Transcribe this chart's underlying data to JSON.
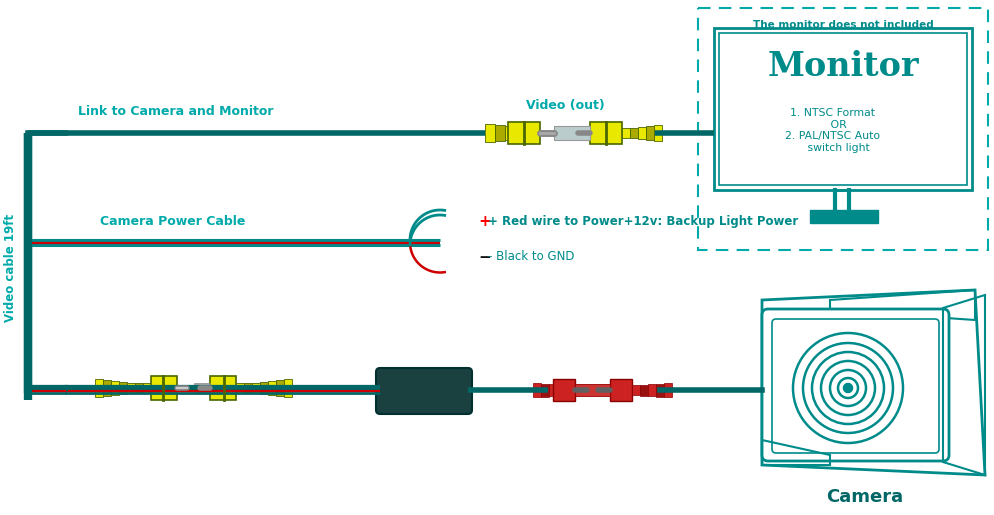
{
  "bg_color": "#ffffff",
  "teal": "#008B8B",
  "teal_light": "#00AAAA",
  "teal_dark": "#006666",
  "yellow": "#E8E800",
  "yellow_dark": "#4A6600",
  "yellow_mid": "#AAAA00",
  "red_wire": "#CC0000",
  "dark_box_fill": "#1a4040",
  "gray_conn": "#8899AA",
  "monitor_note": "The monitor does not included",
  "monitor_text": "Monitor",
  "monitor_specs": "1. NTSC Format\n   OR\n2. PAL/NTSC Auto\n   switch light",
  "label_link": "Link to Camera and Monitor",
  "label_cable": "Camera Power Cable",
  "label_video_cable": "Video cable 19ft",
  "label_video_out": "Video (out)",
  "label_red": "+ Red wire to Power+12v: Backup Light Power",
  "label_black": "- Black to GND",
  "label_camera": "Camera"
}
